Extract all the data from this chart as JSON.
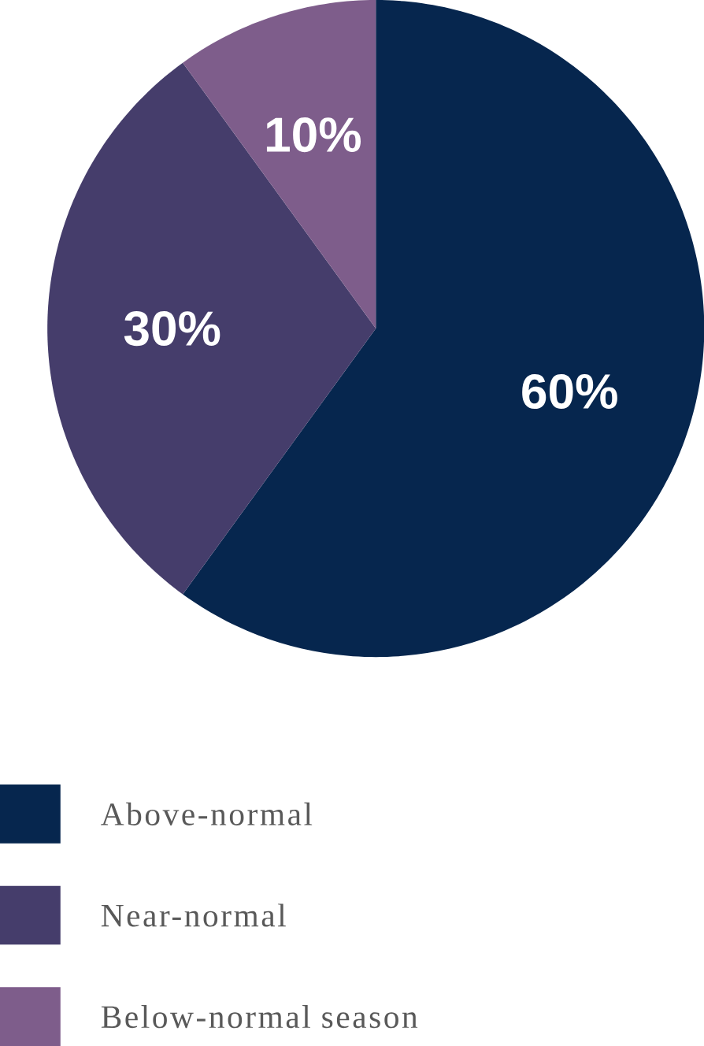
{
  "chart_data": {
    "type": "pie",
    "categories": [
      "Above-normal",
      "Near-normal",
      "Below-normal season"
    ],
    "values": [
      60,
      30,
      10
    ],
    "value_labels": [
      "60%",
      "30%",
      "10%"
    ],
    "colors": [
      "#06264e",
      "#453d6b",
      "#7e5d8b"
    ],
    "legend": "bottom"
  }
}
